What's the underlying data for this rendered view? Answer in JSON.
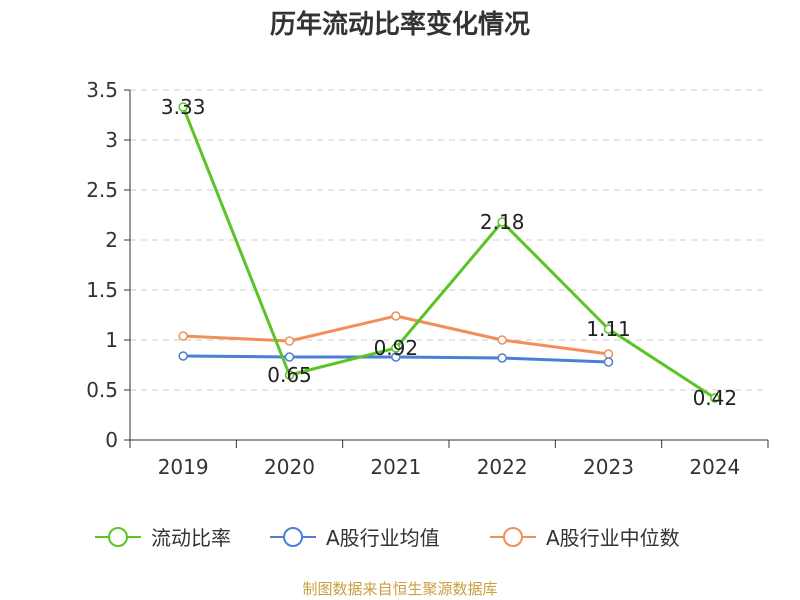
{
  "title": "历年流动比率变化情况",
  "source": "制图数据来自恒生聚源数据库",
  "chart_data": {
    "type": "line",
    "title": "历年流动比率变化情况",
    "categories": [
      "2019",
      "2020",
      "2021",
      "2022",
      "2023",
      "2024"
    ],
    "ylim": [
      0,
      3.5
    ],
    "yticks": [
      "0",
      "0.5",
      "1",
      "1.5",
      "2",
      "2.5",
      "3",
      "3.5"
    ],
    "grid": true,
    "legend_position": "bottom",
    "series": [
      {
        "name": "流动比率",
        "color": "#5ac427",
        "values": [
          3.33,
          0.65,
          0.92,
          2.18,
          1.11,
          0.42
        ],
        "labels": [
          "3.33",
          "0.65",
          "0.92",
          "2.18",
          "1.11",
          "0.42"
        ]
      },
      {
        "name": "A股行业均值",
        "color": "#4a7fd8",
        "values": [
          0.84,
          0.83,
          0.83,
          0.82,
          0.78,
          null
        ],
        "labels": []
      },
      {
        "name": "A股行业中位数",
        "color": "#f28e5a",
        "values": [
          1.04,
          0.99,
          1.24,
          1.0,
          0.86,
          null
        ],
        "labels": []
      }
    ]
  }
}
